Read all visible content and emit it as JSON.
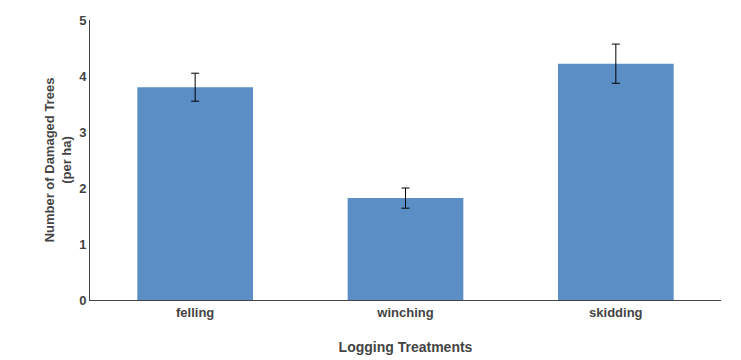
{
  "chart_data": {
    "type": "bar",
    "categories": [
      "felling",
      "winching",
      "skidding"
    ],
    "values": [
      3.8,
      1.82,
      4.22
    ],
    "errors": [
      0.25,
      0.18,
      0.35
    ],
    "color": "#5b8ec4",
    "xlabel": "Logging Treatments",
    "ylabel": "Number of Damaged Trees\n(per ha)",
    "ylim": [
      0,
      5
    ],
    "yticks": [
      0,
      1,
      2,
      3,
      4,
      5
    ],
    "grid": false
  }
}
